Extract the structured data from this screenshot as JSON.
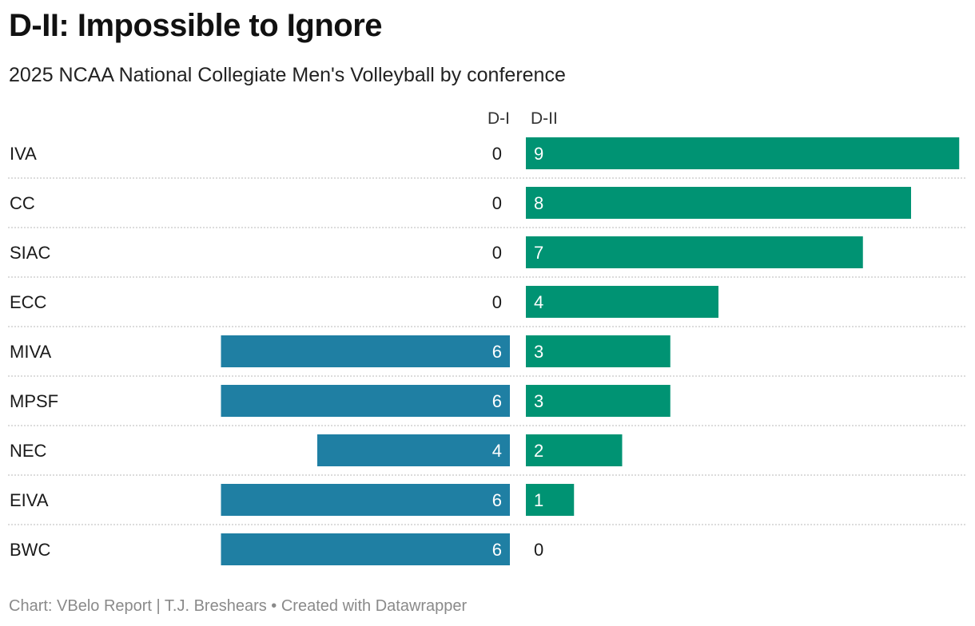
{
  "header": {
    "title": "D-II: Impossible to Ignore",
    "subtitle": "2025 NCAA National Collegiate Men's Volleyball by conference"
  },
  "footer": {
    "text": "Chart: VBelo Report | T.J. Breshears • Created with Datawrapper"
  },
  "chart_data": {
    "type": "bar",
    "orientation": "horizontal-diverging",
    "categories": [
      "IVA",
      "CC",
      "SIAC",
      "ECC",
      "MIVA",
      "MPSF",
      "NEC",
      "EIVA",
      "BWC"
    ],
    "series": [
      {
        "name": "D-I",
        "values": [
          0,
          0,
          0,
          0,
          6,
          6,
          4,
          6,
          6
        ],
        "color": "#1f7fa3"
      },
      {
        "name": "D-II",
        "values": [
          9,
          8,
          7,
          4,
          3,
          3,
          2,
          1,
          0
        ],
        "color": "#009373"
      }
    ],
    "xlim": [
      0,
      9
    ],
    "grid": "dotted row separators",
    "data_labels": true
  }
}
